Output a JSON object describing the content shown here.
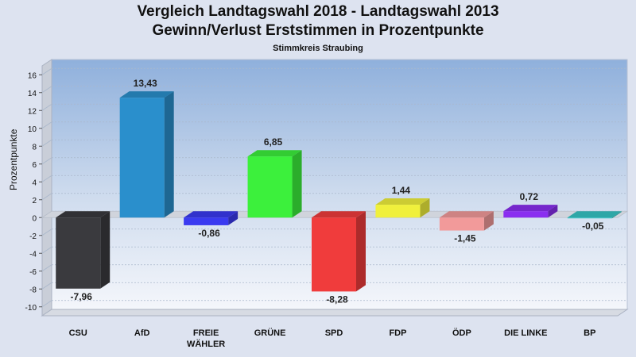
{
  "chart_data": {
    "type": "bar",
    "title": "Vergleich Landtagswahl 2018 - Landtagswahl 2013",
    "subtitle": "Gewinn/Verlust Erststimmen in Prozentpunkte",
    "caption": "Stimmkreis Straubing",
    "ylabel": "Prozentpunkte",
    "xlabel": "",
    "ylim": [
      -11,
      17
    ],
    "yticks": [
      16,
      14,
      12,
      10,
      8,
      6,
      4,
      2,
      0,
      -2,
      -4,
      -6,
      -8,
      -10
    ],
    "grid": true,
    "categories": [
      {
        "name": "CSU",
        "lines": [
          "CSU"
        ],
        "value": -7.96,
        "label": "-7,96",
        "color": "#3a3a3e"
      },
      {
        "name": "AfD",
        "lines": [
          "AfD"
        ],
        "value": 13.43,
        "label": "13,43",
        "color": "#2a8fcc"
      },
      {
        "name": "FREIE WÄHLER",
        "lines": [
          "FREIE",
          "WÄHLER"
        ],
        "value": -0.86,
        "label": "-0,86",
        "color": "#3a3af0"
      },
      {
        "name": "GRÜNE",
        "lines": [
          "GRÜNE"
        ],
        "value": 6.85,
        "label": "6,85",
        "color": "#3cf03c"
      },
      {
        "name": "SPD",
        "lines": [
          "SPD"
        ],
        "value": -8.28,
        "label": "-8,28",
        "color": "#f03c3c"
      },
      {
        "name": "FDP",
        "lines": [
          "FDP"
        ],
        "value": 1.44,
        "label": "1,44",
        "color": "#f0f03c"
      },
      {
        "name": "ÖDP",
        "lines": [
          "ÖDP"
        ],
        "value": -1.45,
        "label": "-1,45",
        "color": "#f29a9a"
      },
      {
        "name": "DIE LINKE",
        "lines": [
          "DIE LINKE"
        ],
        "value": 0.72,
        "label": "0,72",
        "color": "#8a2ef0"
      },
      {
        "name": "BP",
        "lines": [
          "BP"
        ],
        "value": -0.05,
        "label": "-0,05",
        "color": "#36c4c4"
      }
    ]
  }
}
